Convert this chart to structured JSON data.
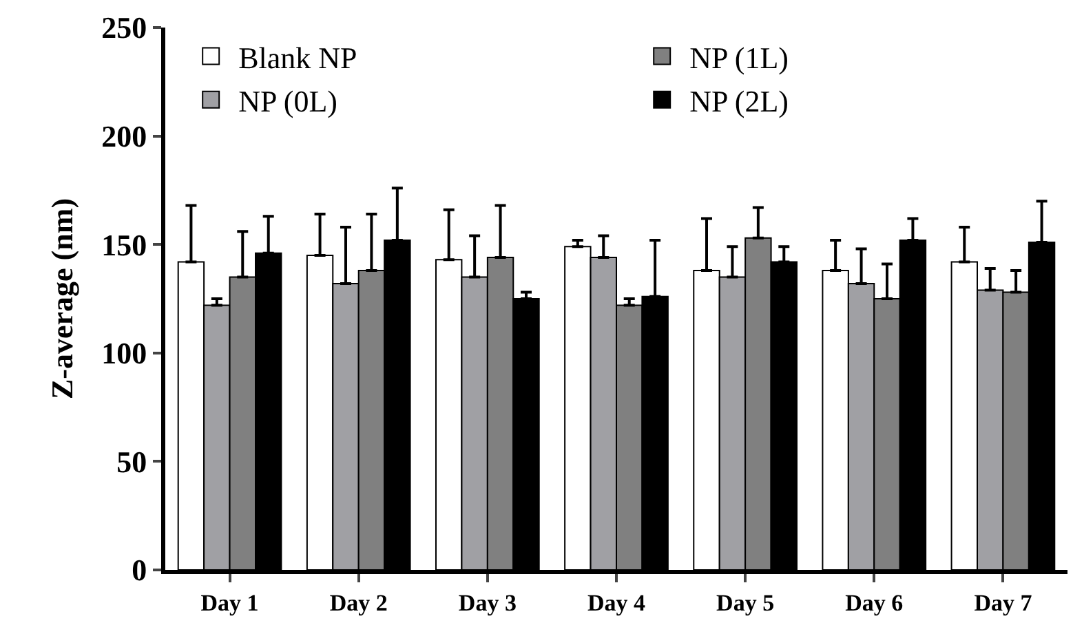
{
  "chart_data": {
    "type": "bar",
    "ylabel": "Z-average (nm)",
    "categories": [
      "Day 1",
      "Day 2",
      "Day 3",
      "Day 4",
      "Day 5",
      "Day 6",
      "Day 7"
    ],
    "series": [
      {
        "name": "Blank NP",
        "color": "#ffffff",
        "values": [
          142,
          145,
          143,
          149,
          138,
          138,
          142
        ],
        "errors": [
          [
            142,
            168
          ],
          [
            145,
            164
          ],
          [
            143,
            166
          ],
          [
            149,
            152
          ],
          [
            138,
            162
          ],
          [
            138,
            152
          ],
          [
            142,
            158
          ]
        ]
      },
      {
        "name": "NP (0L)",
        "color": "#a0a0a4",
        "values": [
          122,
          132,
          135,
          144,
          135,
          132,
          129
        ],
        "errors": [
          [
            122,
            125
          ],
          [
            132,
            158
          ],
          [
            135,
            154
          ],
          [
            144,
            154
          ],
          [
            135,
            149
          ],
          [
            132,
            148
          ],
          [
            129,
            139
          ]
        ]
      },
      {
        "name": "NP (1L)",
        "color": "#808080",
        "values": [
          135,
          138,
          144,
          122,
          153,
          125,
          128
        ],
        "errors": [
          [
            135,
            156
          ],
          [
            138,
            164
          ],
          [
            144,
            168
          ],
          [
            122,
            125
          ],
          [
            153,
            167
          ],
          [
            125,
            141
          ],
          [
            128,
            138
          ]
        ]
      },
      {
        "name": "NP (2L)",
        "color": "#000000",
        "values": [
          146,
          152,
          125,
          126,
          142,
          152,
          151
        ],
        "errors": [
          [
            146,
            163
          ],
          [
            152,
            176
          ],
          [
            125,
            128
          ],
          [
            126,
            152
          ],
          [
            142,
            149
          ],
          [
            152,
            162
          ],
          [
            151,
            170
          ]
        ]
      }
    ],
    "ylim": [
      0,
      250
    ],
    "yticks": [
      0,
      50,
      100,
      150,
      200,
      250
    ],
    "legend": "top"
  }
}
